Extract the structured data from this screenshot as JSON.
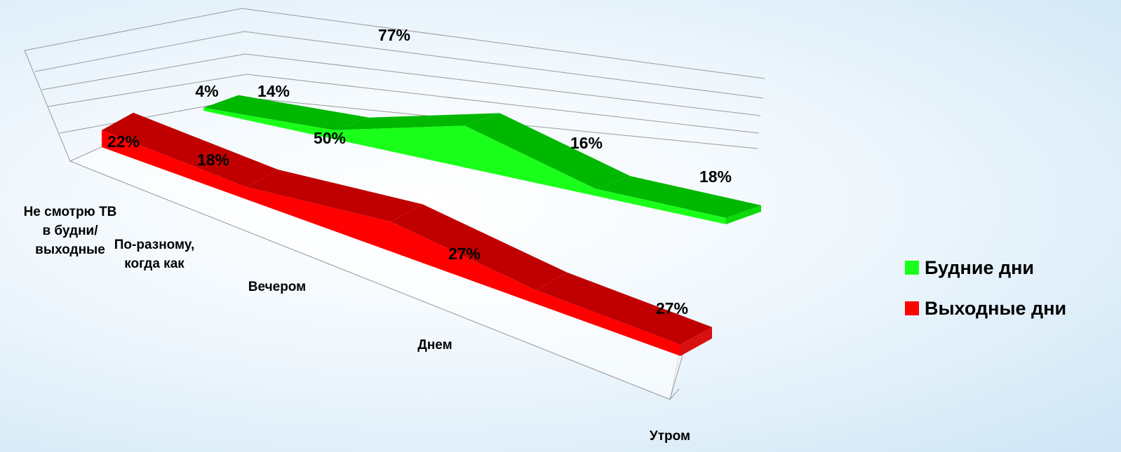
{
  "colors": {
    "weekdays": "#19ff19",
    "weekdays_dark": "#00b800",
    "weekdays_mid": "#0bd90b",
    "weekend": "#ff0000",
    "weekend_dark": "#c00000",
    "weekend_mid": "#d91010",
    "grid": "#9a9a9a"
  },
  "chart_data": {
    "type": "area",
    "categories": [
      "Не смотрю ТВ в будни/ выходные",
      "По-разному, когда как",
      "Вечером",
      "Днем",
      "Утром"
    ],
    "category_label_lines": [
      [
        "Не смотрю ТВ",
        "в будни/",
        "выходные"
      ],
      [
        "По-разному,",
        "когда как"
      ],
      [
        "Вечером"
      ],
      [
        "Днем"
      ],
      [
        "Утром"
      ]
    ],
    "series": [
      {
        "name": "Будние дни",
        "values": [
          4,
          14,
          77,
          16,
          18
        ],
        "labels": [
          "4%",
          "14%",
          "77%",
          "16%",
          "18%"
        ]
      },
      {
        "name": "Выходные дни",
        "values": [
          22,
          18,
          50,
          27,
          27
        ],
        "labels": [
          "22%",
          "18%",
          "50%",
          "27%",
          "27%"
        ]
      }
    ],
    "grid": true,
    "legend_position": "right"
  }
}
